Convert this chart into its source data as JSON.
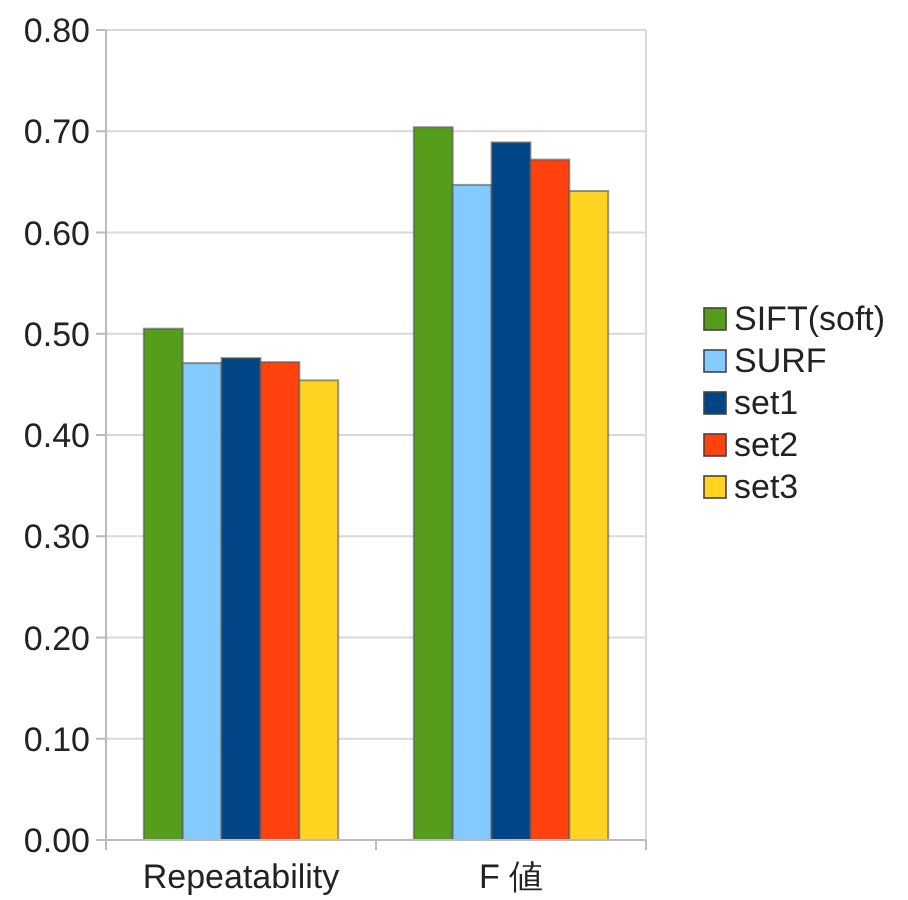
{
  "chart_data": {
    "type": "bar",
    "categories": [
      "Repeatability",
      "F 値"
    ],
    "series": [
      {
        "name": "SIFT(soft)",
        "color": "#579d1c",
        "values": [
          0.505,
          0.704
        ]
      },
      {
        "name": "SURF",
        "color": "#83caff",
        "values": [
          0.471,
          0.647
        ]
      },
      {
        "name": "set1",
        "color": "#004586",
        "values": [
          0.476,
          0.689
        ]
      },
      {
        "name": "set2",
        "color": "#ff420e",
        "values": [
          0.472,
          0.672
        ]
      },
      {
        "name": "set3",
        "color": "#ffd320",
        "values": [
          0.454,
          0.641
        ]
      }
    ],
    "ylim": [
      0,
      0.8
    ],
    "yticks": [
      {
        "value": 0,
        "label": "0.00"
      },
      {
        "value": 0.1,
        "label": "0.10"
      },
      {
        "value": 0.2,
        "label": "0.20"
      },
      {
        "value": 0.3,
        "label": "0.30"
      },
      {
        "value": 0.4,
        "label": "0.40"
      },
      {
        "value": 0.5,
        "label": "0.50"
      },
      {
        "value": 0.6,
        "label": "0.60"
      },
      {
        "value": 0.7,
        "label": "0.70"
      },
      {
        "value": 0.8,
        "label": "0.80"
      }
    ],
    "grid": "y",
    "legend": "right"
  }
}
